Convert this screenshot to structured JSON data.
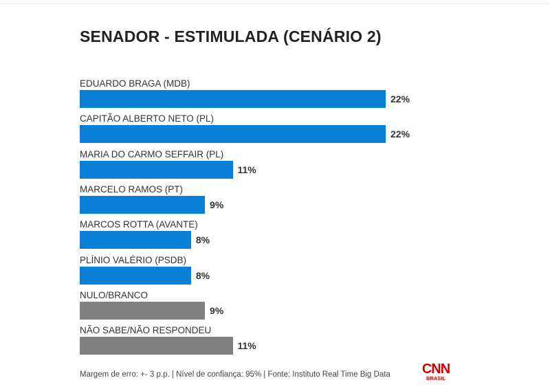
{
  "chart_data": {
    "type": "bar",
    "orientation": "horizontal",
    "title": "SENADOR - ESTIMULADA (CENÁRIO 2)",
    "categories": [
      "EDUARDO BRAGA (MDB)",
      "CAPITÃO ALBERTO NETO (PL)",
      "MARIA DO CARMO SEFFAIR (PL)",
      "MARCELO RAMOS (PT)",
      "MARCOS ROTTA (AVANTE)",
      "PLÍNIO VALÉRIO (PSDB)",
      "NULO/BRANCO",
      "NÃO SABE/NÃO RESPONDEU"
    ],
    "values": [
      22,
      22,
      11,
      9,
      8,
      8,
      9,
      11
    ],
    "value_labels": [
      "22%",
      "22%",
      "11%",
      "9%",
      "8%",
      "8%",
      "9%",
      "11%"
    ],
    "bar_colors": [
      "#0a7fd6",
      "#0a7fd6",
      "#0a7fd6",
      "#0a7fd6",
      "#0a7fd6",
      "#0a7fd6",
      "#808080",
      "#808080"
    ],
    "xlim": [
      0,
      22
    ],
    "grid": false,
    "xlabel": "",
    "ylabel": ""
  },
  "footer": "Margem de erro: +- 3 p.p. | Nível de confiança: 95% | Fonte: Instituto Real Time Big Data",
  "logo": {
    "name": "CNN",
    "sub": "BRASIL"
  }
}
